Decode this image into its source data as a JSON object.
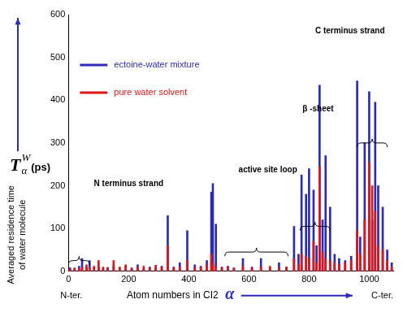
{
  "chart_data": {
    "type": "bar",
    "y_symbol": "T",
    "y_symbol_sub": "α",
    "y_symbol_sup": "W",
    "y_unit": "(ps)",
    "y_label": [
      "Averaged residence time",
      "of water molecule"
    ],
    "x_label": "Atom numbers in CI2",
    "x_symbol": "α",
    "x_end_labels": [
      "N-ter.",
      "C-ter."
    ],
    "annotations": [
      "N terminus strand",
      "active site loop",
      "β -sheet",
      "C terminus strand"
    ],
    "x": [
      5,
      20,
      35,
      45,
      60,
      70,
      85,
      100,
      115,
      130,
      150,
      170,
      190,
      210,
      230,
      250,
      270,
      290,
      310,
      330,
      350,
      370,
      395,
      420,
      440,
      460,
      475,
      480,
      490,
      510,
      530,
      550,
      580,
      610,
      640,
      670,
      700,
      725,
      750,
      765,
      775,
      790,
      800,
      815,
      825,
      835,
      845,
      855,
      870,
      885,
      900,
      920,
      940,
      960,
      970,
      985,
      1000,
      1010,
      1020,
      1030,
      1045,
      1060,
      1075
    ],
    "series": [
      {
        "name": "ectoine-water mixture",
        "color": "#2b2bb8",
        "values": [
          8,
          5,
          12,
          30,
          10,
          25,
          8,
          10,
          6,
          9,
          12,
          7,
          10,
          8,
          15,
          6,
          10,
          8,
          12,
          130,
          10,
          20,
          95,
          15,
          12,
          25,
          185,
          205,
          110,
          10,
          12,
          8,
          30,
          10,
          30,
          8,
          20,
          10,
          105,
          40,
          225,
          180,
          240,
          190,
          60,
          435,
          120,
          270,
          150,
          40,
          30,
          25,
          35,
          445,
          80,
          300,
          420,
          120,
          395,
          200,
          150,
          50,
          20
        ]
      },
      {
        "name": "pure water solvent",
        "color": "#e01515",
        "values": [
          5,
          8,
          6,
          10,
          15,
          8,
          12,
          25,
          10,
          8,
          25,
          10,
          15,
          6,
          10,
          12,
          8,
          14,
          10,
          60,
          8,
          10,
          25,
          8,
          10,
          15,
          40,
          20,
          12,
          8,
          10,
          6,
          12,
          8,
          10,
          12,
          8,
          10,
          30,
          15,
          40,
          35,
          30,
          70,
          20,
          245,
          45,
          30,
          25,
          20,
          15,
          20,
          25,
          95,
          40,
          120,
          255,
          200,
          140,
          60,
          50,
          25,
          10
        ]
      }
    ],
    "xlim": [
      0,
      1080
    ],
    "xticks": [
      0,
      200,
      400,
      600,
      800,
      1000
    ],
    "ylim": [
      0,
      600
    ],
    "yticks": [
      0,
      100,
      200,
      300,
      400,
      500,
      600
    ],
    "grid": false,
    "legend": "upper left"
  }
}
